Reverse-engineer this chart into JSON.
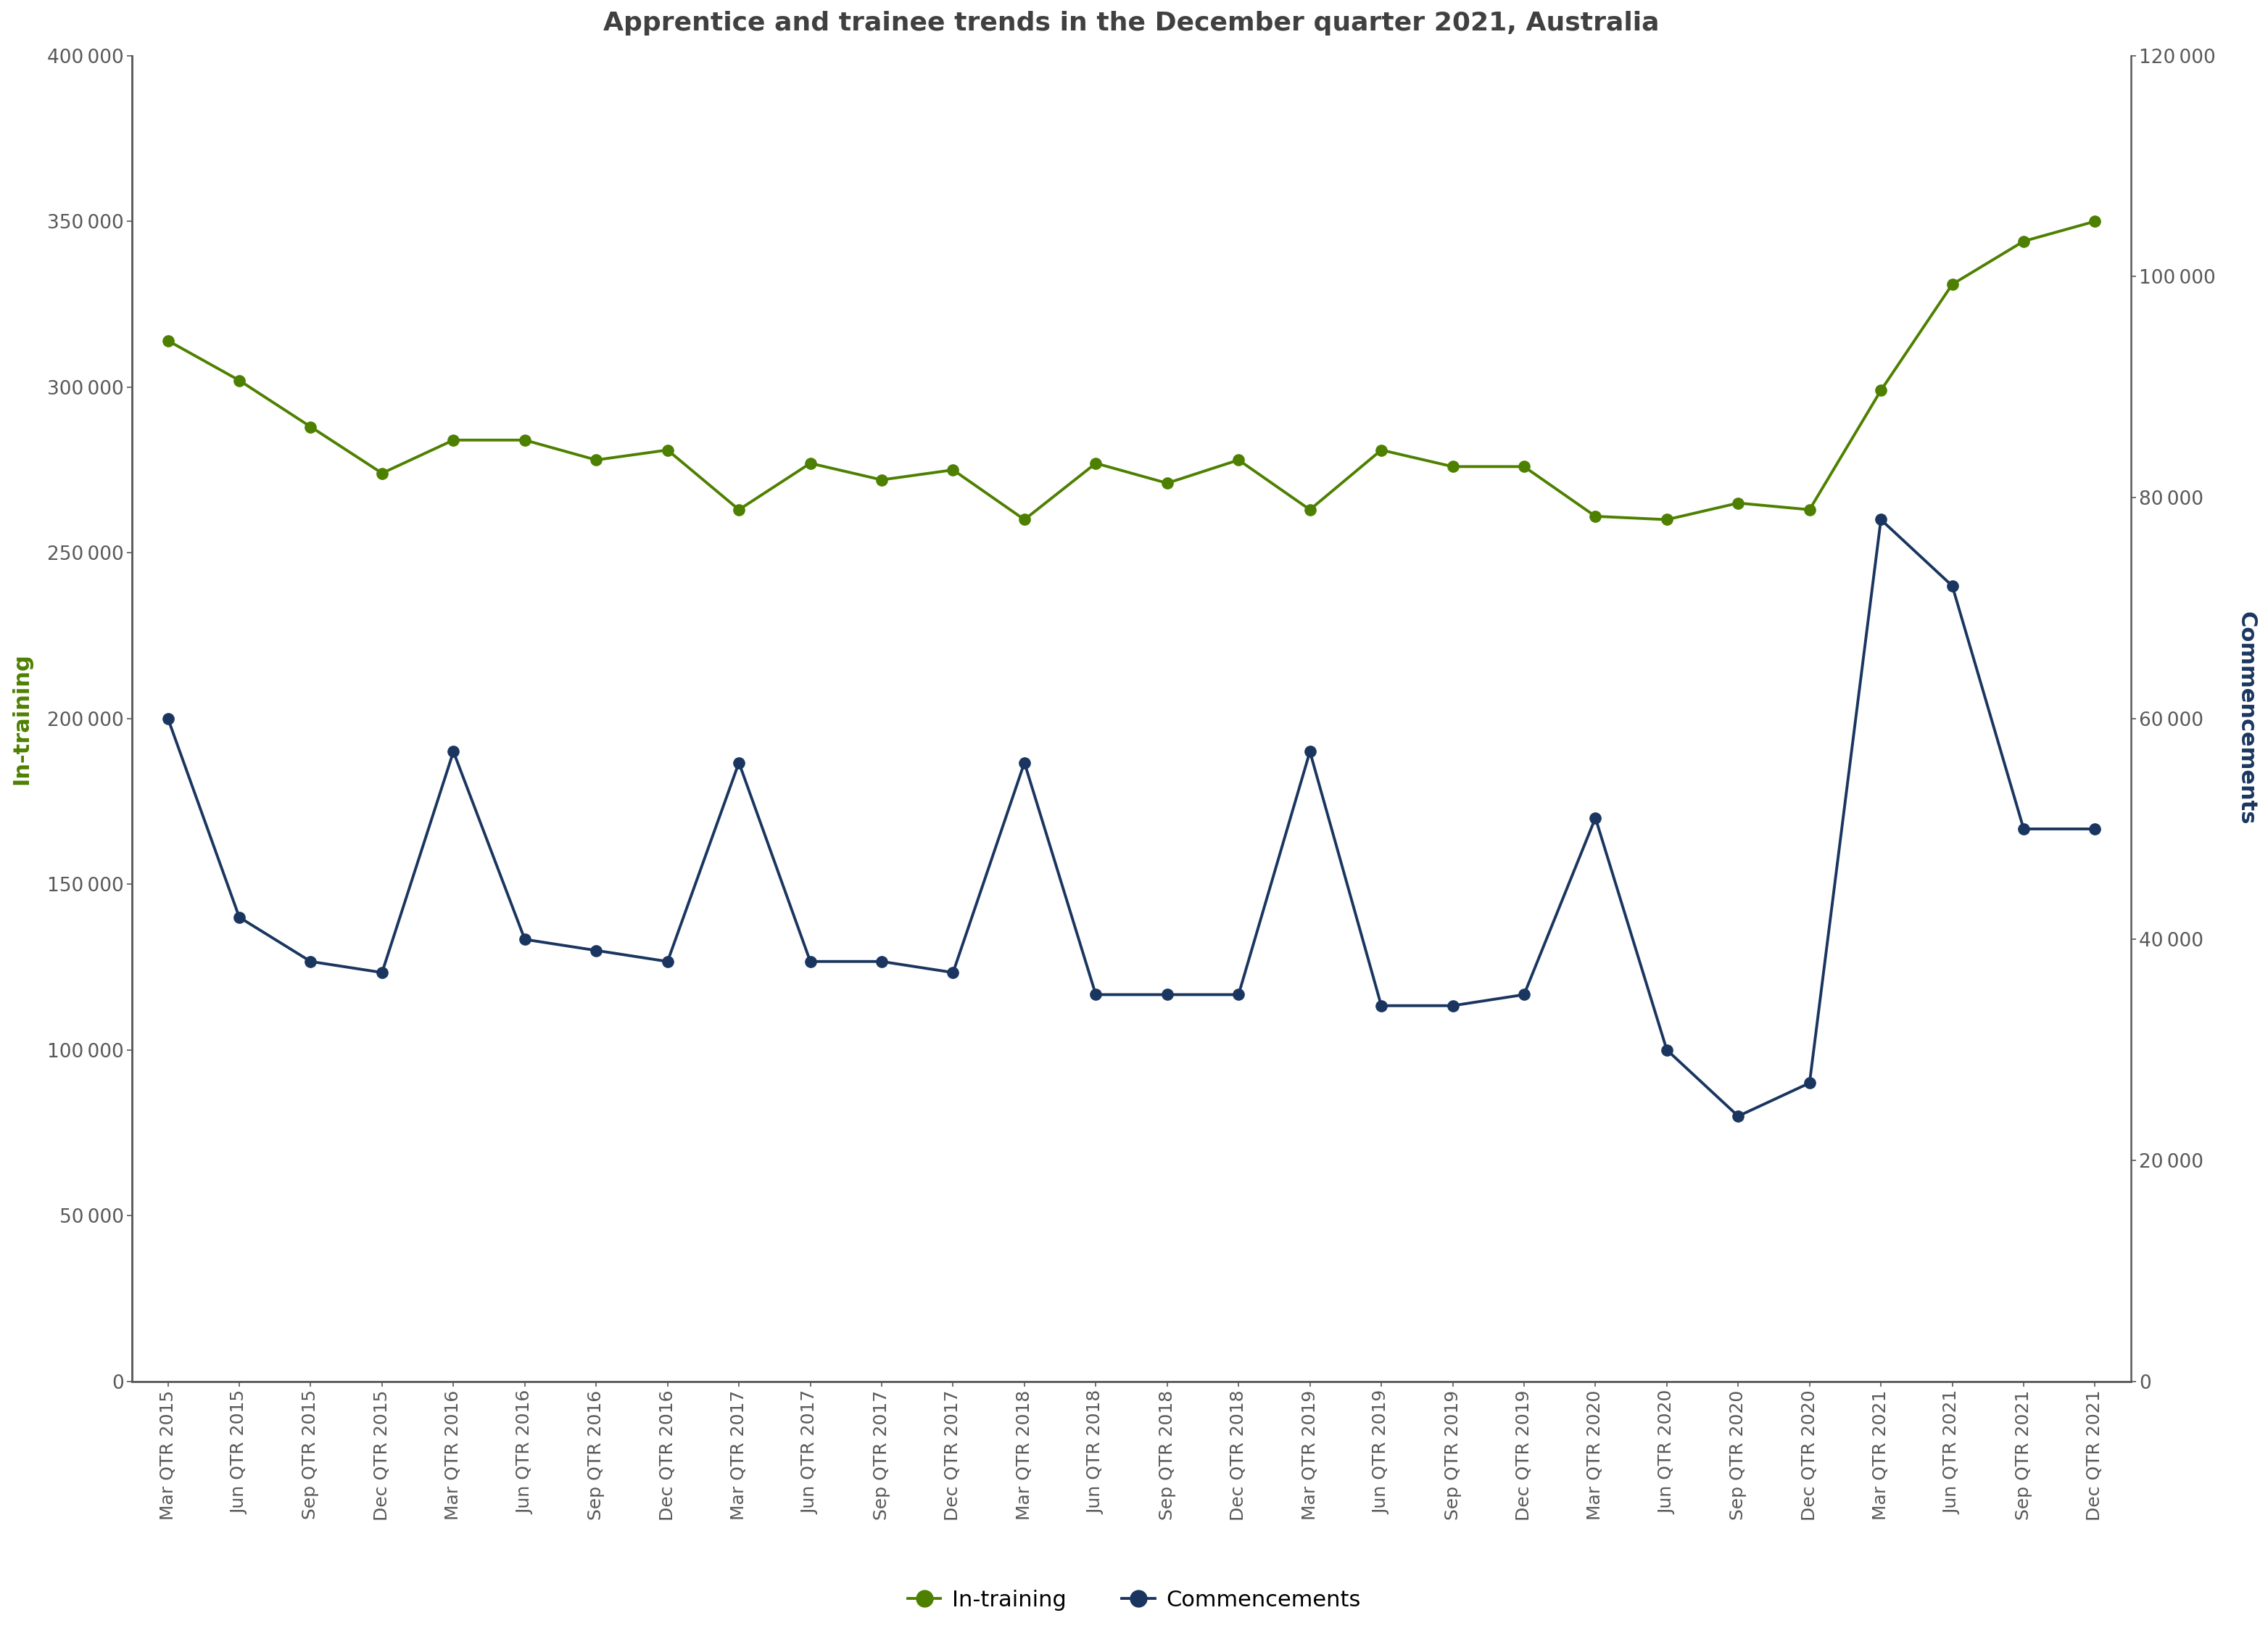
{
  "title": "Apprentice and trainee trends in the December quarter 2021, Australia",
  "ylabel_left": "In-training",
  "ylabel_right": "Commencements",
  "categories": [
    "Mar QTR 2015",
    "Jun QTR 2015",
    "Sep QTR 2015",
    "Dec QTR 2015",
    "Mar QTR 2016",
    "Jun QTR 2016",
    "Sep QTR 2016",
    "Dec QTR 2016",
    "Mar QTR 2017",
    "Jun QTR 2017",
    "Sep QTR 2017",
    "Dec QTR 2017",
    "Mar QTR 2018",
    "Jun QTR 2018",
    "Sep QTR 2018",
    "Dec QTR 2018",
    "Mar QTR 2019",
    "Jun QTR 2019",
    "Sep QTR 2019",
    "Dec QTR 2019",
    "Mar QTR 2020",
    "Jun QTR 2020",
    "Sep QTR 2020",
    "Dec QTR 2020",
    "Mar QTR 2021",
    "Jun QTR 2021",
    "Sep QTR 2021",
    "Dec QTR 2021"
  ],
  "in_training": [
    314000,
    302000,
    288000,
    274000,
    284000,
    284000,
    278000,
    281000,
    263000,
    277000,
    272000,
    275000,
    260000,
    277000,
    271000,
    278000,
    263000,
    281000,
    276000,
    276000,
    261000,
    260000,
    265000,
    263000,
    299000,
    331000,
    344000,
    350000
  ],
  "commencements": [
    60000,
    42000,
    38000,
    37000,
    57000,
    40000,
    39000,
    38000,
    56000,
    38000,
    38000,
    37000,
    56000,
    35000,
    35000,
    35000,
    57000,
    34000,
    34000,
    35000,
    51000,
    30000,
    24000,
    27000,
    78000,
    72000,
    50000,
    50000
  ],
  "in_training_color": "#4E8000",
  "commencements_color": "#1A3660",
  "left_ylim": [
    0,
    400000
  ],
  "right_ylim": [
    0,
    120000
  ],
  "left_yticks": [
    0,
    50000,
    100000,
    150000,
    200000,
    250000,
    300000,
    350000,
    400000
  ],
  "right_yticks": [
    0,
    20000,
    40000,
    60000,
    80000,
    100000,
    120000
  ],
  "title_fontsize": 26,
  "axis_label_fontsize": 22,
  "tick_fontsize": 19,
  "legend_fontsize": 22,
  "line_width": 2.8,
  "marker_size": 11,
  "background_color": "#ffffff",
  "spine_color": "#595959",
  "tick_color": "#595959"
}
